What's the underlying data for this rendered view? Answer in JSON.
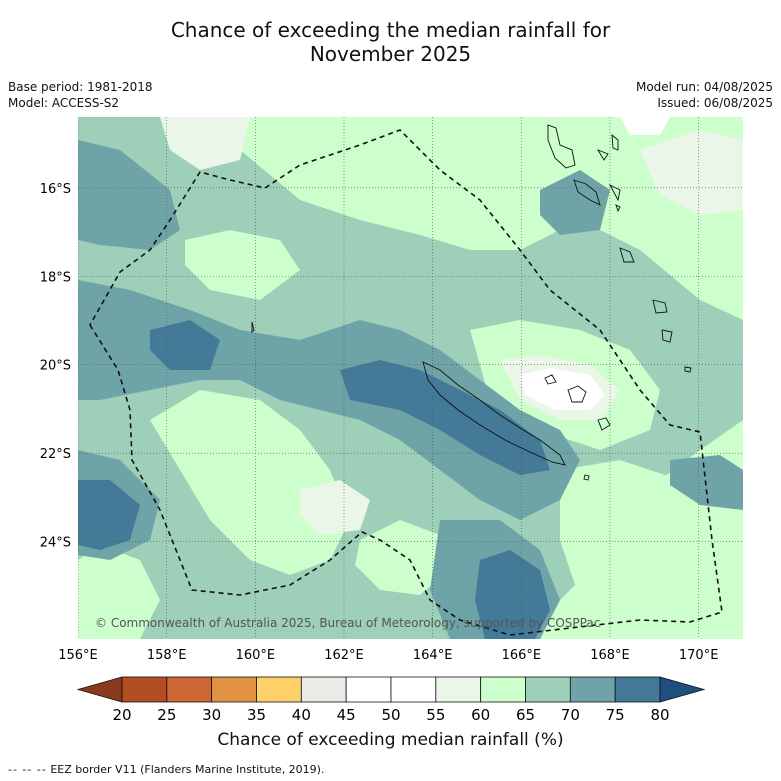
{
  "title": {
    "line1": "Chance of exceeding the median rainfall for",
    "line2": "November 2025"
  },
  "meta_left": {
    "base_period": "Base period: 1981-2018",
    "model": "Model: ACCESS-S2"
  },
  "meta_right": {
    "model_run": "Model run: 04/08/2025",
    "issued": "Issued: 06/08/2025"
  },
  "map": {
    "lon_range": [
      156,
      171
    ],
    "lat_range": [
      -26.2,
      -14.4
    ],
    "lon_ticks": [
      "156°E",
      "158°E",
      "160°E",
      "162°E",
      "164°E",
      "166°E",
      "168°E",
      "170°E"
    ],
    "lat_ticks": [
      "16°S",
      "18°S",
      "20°S",
      "22°S",
      "24°S"
    ],
    "copyright": "© Commonwealth of Australia 2025, Bureau of Meteorology, supported by COSPPac",
    "gridlines": true
  },
  "colorbar": {
    "ticks": [
      "20",
      "25",
      "30",
      "35",
      "40",
      "45",
      "50",
      "55",
      "60",
      "65",
      "70",
      "75",
      "80"
    ],
    "low_extend_color": "#8c3a1f",
    "high_extend_color": "#1f4f7f",
    "colors": [
      "#b34d22",
      "#cc6633",
      "#e29245",
      "#fdd06a",
      "#eaeae6",
      "#ffffff",
      "#ffffff",
      "#eaf7e8",
      "#ccffcc",
      "#9dcfb9",
      "#6ea4a8",
      "#427a98"
    ],
    "label": "Chance of exceeding median rainfall (%)"
  },
  "footer": {
    "dash": "-- -- --",
    "text": "EEZ border V11 (Flanders Marine Institute, 2019)."
  }
}
